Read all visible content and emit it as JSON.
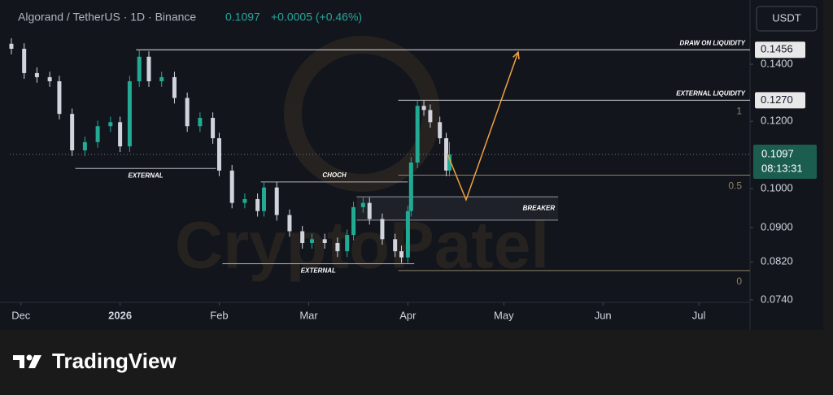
{
  "chart_data": {
    "type": "candlestick",
    "title": "Algorand / TetherUS · 1D · Binance",
    "last_price": 0.1097,
    "change": "+0.0005 (+0.46%)",
    "countdown": "08:13:31",
    "currency": "USDT",
    "up_color": "#22ab94",
    "down_color": "#d1d4dc",
    "log_scale": true,
    "grid": false,
    "xlim": [
      -3.5,
      228
    ],
    "xticks": [
      {
        "value": 0,
        "label": "Dec"
      },
      {
        "value": 31,
        "label": "2026"
      },
      {
        "value": 62,
        "label": "Feb"
      },
      {
        "value": 90,
        "label": "Mar"
      },
      {
        "value": 121,
        "label": "Apr"
      },
      {
        "value": 151,
        "label": "May"
      },
      {
        "value": 182,
        "label": "Jun"
      },
      {
        "value": 212,
        "label": "Jul"
      }
    ],
    "ylim": [
      0.0735,
      0.1666
    ],
    "yticks": [
      {
        "value": 0.14,
        "label": "0.1400"
      },
      {
        "value": 0.12,
        "label": "0.1200"
      },
      {
        "value": 0.1,
        "label": "0.1000"
      },
      {
        "value": 0.09,
        "label": "0.0900"
      },
      {
        "value": 0.082,
        "label": "0.0820"
      },
      {
        "value": 0.074,
        "label": "0.0740"
      }
    ],
    "x": [
      -3,
      1,
      5,
      9,
      12,
      16,
      20,
      24,
      28,
      31,
      34,
      37,
      40,
      44,
      48,
      52,
      56,
      60,
      62,
      66,
      70,
      74,
      76,
      80,
      84,
      88,
      91,
      95,
      99,
      102,
      104,
      107,
      109,
      113,
      117,
      119,
      121,
      122,
      124,
      126,
      128,
      131,
      133,
      134
    ],
    "open": [
      0.148,
      0.146,
      0.1367,
      0.1352,
      0.1337,
      0.1224,
      0.1109,
      0.1134,
      0.1184,
      0.1197,
      0.1121,
      0.1337,
      0.1429,
      0.1337,
      0.1352,
      0.1278,
      0.1184,
      0.1211,
      0.1146,
      0.105,
      0.0962,
      0.0972,
      0.0941,
      0.1003,
      0.0931,
      0.0891,
      0.0863,
      0.0872,
      0.0863,
      0.0844,
      0.0882,
      0.0951,
      0.0962,
      0.0921,
      0.0872,
      0.0844,
      0.083,
      0.0941,
      0.1073,
      0.1251,
      0.1237,
      0.1197,
      0.1146,
      0.105
    ],
    "high": [
      0.1502,
      0.1482,
      0.1388,
      0.1372,
      0.1357,
      0.1242,
      0.1151,
      0.1202,
      0.1215,
      0.1215,
      0.1357,
      0.1456,
      0.145,
      0.1372,
      0.1372,
      0.1297,
      0.1229,
      0.1229,
      0.1163,
      0.1066,
      0.0987,
      0.0987,
      0.1018,
      0.1018,
      0.0945,
      0.0904,
      0.0885,
      0.0885,
      0.0876,
      0.0895,
      0.0965,
      0.0976,
      0.0976,
      0.0935,
      0.0885,
      0.0857,
      0.0955,
      0.1089,
      0.127,
      0.127,
      0.1256,
      0.1215,
      0.1163,
      0.1134
    ],
    "low": [
      0.1438,
      0.1346,
      0.1332,
      0.1317,
      0.1206,
      0.1092,
      0.1092,
      0.1117,
      0.1166,
      0.1104,
      0.1104,
      0.1317,
      0.1317,
      0.1317,
      0.1259,
      0.1166,
      0.1166,
      0.1129,
      0.1034,
      0.0948,
      0.0948,
      0.0927,
      0.0927,
      0.0917,
      0.0878,
      0.085,
      0.085,
      0.085,
      0.0831,
      0.0831,
      0.0869,
      0.0937,
      0.0907,
      0.0859,
      0.0831,
      0.0818,
      0.0818,
      0.0927,
      0.1057,
      0.1218,
      0.1179,
      0.1129,
      0.1034,
      0.1034
    ],
    "close": [
      0.146,
      0.1367,
      0.1352,
      0.1337,
      0.1224,
      0.1109,
      0.1134,
      0.1184,
      0.1197,
      0.1121,
      0.1337,
      0.1429,
      0.1337,
      0.1352,
      0.1278,
      0.1184,
      0.1211,
      0.1146,
      0.105,
      0.0962,
      0.0972,
      0.0941,
      0.1003,
      0.0931,
      0.0891,
      0.0863,
      0.0872,
      0.0863,
      0.0844,
      0.0882,
      0.0951,
      0.0962,
      0.0921,
      0.0872,
      0.0844,
      0.083,
      0.0941,
      0.1073,
      0.1251,
      0.1237,
      0.1197,
      0.1146,
      0.105,
      0.1097
    ],
    "annotations": [
      {
        "label": "DRAW ON LIQUIDITY",
        "price": 0.1456,
        "price_label": "0.1456",
        "x": [
          36,
          228
        ]
      },
      {
        "label": "EXTERNAL LIQUIDITY",
        "price": 0.127,
        "price_label": "0.1270",
        "x": [
          118,
          228
        ]
      },
      {
        "label": "EXTERNAL",
        "price": 0.1056,
        "x": [
          17,
          61
        ]
      },
      {
        "label": "CHOCH",
        "price": 0.1018,
        "x": [
          75,
          121
        ]
      },
      {
        "label": "EXTERNAL",
        "price": 0.0816,
        "x": [
          63,
          123
        ]
      }
    ],
    "breaker": {
      "label": "BREAKER",
      "price_top": 0.0978,
      "price_bottom": 0.0918,
      "x": [
        105,
        168
      ]
    },
    "fib": {
      "color": "#8c8466",
      "x": [
        118,
        228
      ],
      "levels": [
        {
          "level": 1,
          "price": 0.127
        },
        {
          "level": 0.5,
          "price": 0.1037
        },
        {
          "level": 0,
          "price": 0.0801
        }
      ]
    },
    "projection": {
      "color": "#f0a040",
      "x": [
        133.3,
        139.2,
        155.5
      ],
      "y": [
        0.11,
        0.097,
        0.1447
      ]
    }
  },
  "branding": {
    "logo": "TradingView",
    "watermark": "CryptoPatel"
  }
}
